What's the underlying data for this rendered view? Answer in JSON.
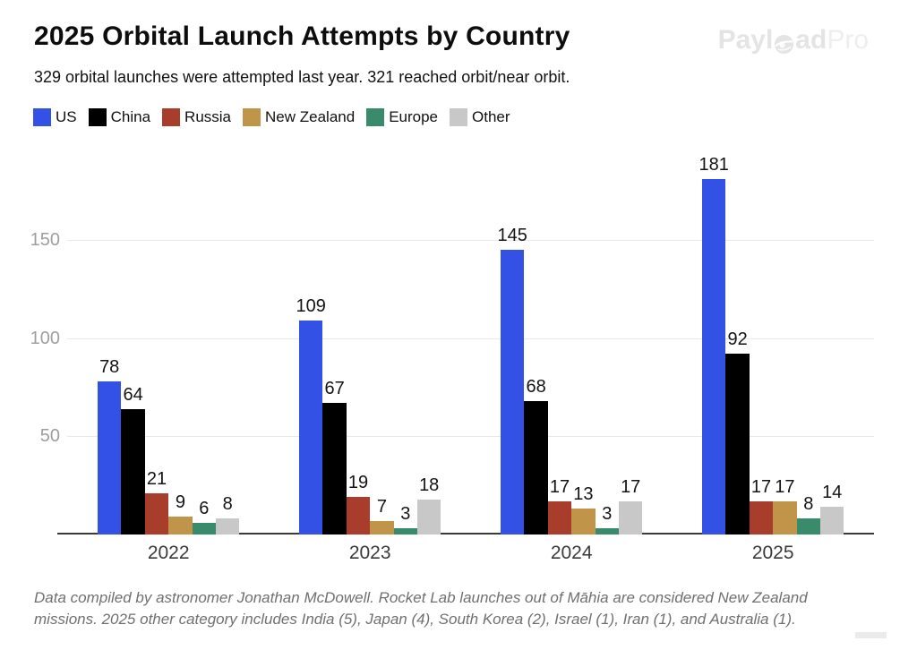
{
  "header": {
    "title": "2025 Orbital Launch Attempts by Country",
    "subtitle": "329 orbital launches were attempted last year. 321 reached orbit/near orbit.",
    "logo": {
      "part1": "Payl",
      "part2": "ad",
      "part3": "Pro"
    }
  },
  "chart_data": {
    "type": "bar",
    "title": "2025 Orbital Launch Attempts by Country",
    "categories": [
      "2022",
      "2023",
      "2024",
      "2025"
    ],
    "series": [
      {
        "name": "US",
        "color": "#3351e4",
        "values": [
          78,
          109,
          145,
          181
        ]
      },
      {
        "name": "China",
        "color": "#000000",
        "values": [
          64,
          67,
          68,
          92
        ]
      },
      {
        "name": "Russia",
        "color": "#a93d2c",
        "values": [
          21,
          19,
          17,
          17
        ]
      },
      {
        "name": "New Zealand",
        "color": "#c0954a",
        "values": [
          9,
          7,
          13,
          17
        ]
      },
      {
        "name": "Europe",
        "color": "#3a8a6c",
        "values": [
          6,
          3,
          3,
          8
        ]
      },
      {
        "name": "Other",
        "color": "#c8c8c8",
        "values": [
          8,
          18,
          17,
          14
        ]
      }
    ],
    "xlabel": "",
    "ylabel": "",
    "ylim": [
      0,
      190
    ],
    "yticks": [
      50,
      100,
      150
    ],
    "grid": true,
    "legend_position": "top",
    "value_labels": true
  },
  "footer": {
    "line1": "Data compiled by astronomer Jonathan McDowell. Rocket Lab launches out of Māhia are considered New Zealand",
    "line2": "missions. 2025 other category includes India (5), Japan (4), South Korea (2), Israel (1), Iran (1), and Australia (1)."
  }
}
